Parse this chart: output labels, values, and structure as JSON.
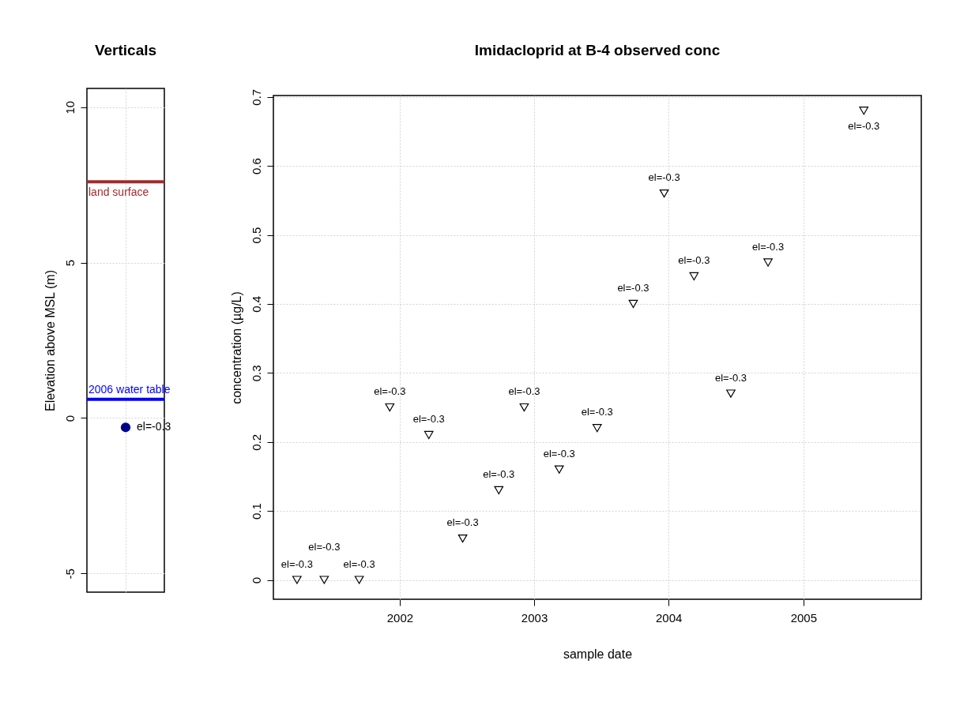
{
  "chart_data": [
    {
      "type": "scatter",
      "title": "Verticals",
      "ylabel": "Elevation above MSL (m)",
      "categories": [
        null
      ],
      "series": [
        {
          "color": "#00008b",
          "values": [
            -0.3
          ]
        }
      ],
      "ylim": [
        -5.6,
        10.6
      ],
      "yticks": [
        -5,
        0,
        5,
        10
      ],
      "ref_lines": [
        {
          "axis": "y",
          "value": 7.6,
          "label": "land surface",
          "color": "#a52a2a"
        },
        {
          "axis": "y",
          "value": 0.6,
          "label": "2006 water table",
          "color": "#0000ff"
        }
      ],
      "annotations": [
        "el=-0.3"
      ],
      "marker": "circle",
      "grid": true,
      "tick_labels": "y"
    },
    {
      "type": "scatter",
      "title": "Imidacloprid at  B-4 observed conc",
      "xlabel": "sample date",
      "ylabel": "concentration (µg/L)",
      "x": [
        "2001-03-28",
        "2001-06-10",
        "2001-09-13",
        "2001-12-05",
        "2002-03-21",
        "2002-06-21",
        "2002-09-27",
        "2002-12-05",
        "2003-03-10",
        "2003-06-21",
        "2003-09-27",
        "2003-12-20",
        "2004-03-10",
        "2004-06-18",
        "2004-09-27",
        "2005-06-14"
      ],
      "series": [
        {
          "color": "#000000",
          "values": [
            0,
            0,
            0,
            0.25,
            0.21,
            0.06,
            0.13,
            0.25,
            0.16,
            0.22,
            0.4,
            0.56,
            0.44,
            0.27,
            0.46,
            0.68
          ]
        }
      ],
      "xlim": [
        "2001-01-23",
        "2005-11-17"
      ],
      "ylim": [
        -0.028,
        0.702
      ],
      "xticks": [
        "2002",
        "2003",
        "2004",
        "2005"
      ],
      "yticks": [
        0,
        0.1,
        0.2,
        0.3,
        0.4,
        0.5,
        0.6,
        0.7
      ],
      "annotations": [
        {
          "text": "el=-0.3",
          "x": "2001-03-28",
          "y": 0
        },
        {
          "text": "el=-0.3",
          "x": "2001-06-10",
          "y": 0
        },
        {
          "text": "el=-0.3",
          "x": "2001-09-13",
          "y": 0
        },
        {
          "text": "el=-0.3",
          "x": "2001-12-05",
          "y": 0.25
        },
        {
          "text": "el=-0.3",
          "x": "2002-03-21",
          "y": 0.21
        },
        {
          "text": "el=-0.3",
          "x": "2002-06-21",
          "y": 0.06
        },
        {
          "text": "el=-0.3",
          "x": "2002-09-27",
          "y": 0.13
        },
        {
          "text": "el=-0.3",
          "x": "2002-12-05",
          "y": 0.25
        },
        {
          "text": "el=-0.3",
          "x": "2003-03-10",
          "y": 0.16
        },
        {
          "text": "el=-0.3",
          "x": "2003-06-21",
          "y": 0.22
        },
        {
          "text": "el=-0.3",
          "x": "2003-09-27",
          "y": 0.4
        },
        {
          "text": "el=-0.3",
          "x": "2003-12-20",
          "y": 0.56
        },
        {
          "text": "el=-0.3",
          "x": "2004-03-10",
          "y": 0.44
        },
        {
          "text": "el=-0.3",
          "x": "2004-06-18",
          "y": 0.27
        },
        {
          "text": "el=-0.3",
          "x": "2004-09-27",
          "y": 0.46
        },
        {
          "text": "el=-0.3",
          "x": "2005-06-14",
          "y": 0.68
        }
      ],
      "marker": "triangle",
      "grid": true
    }
  ]
}
